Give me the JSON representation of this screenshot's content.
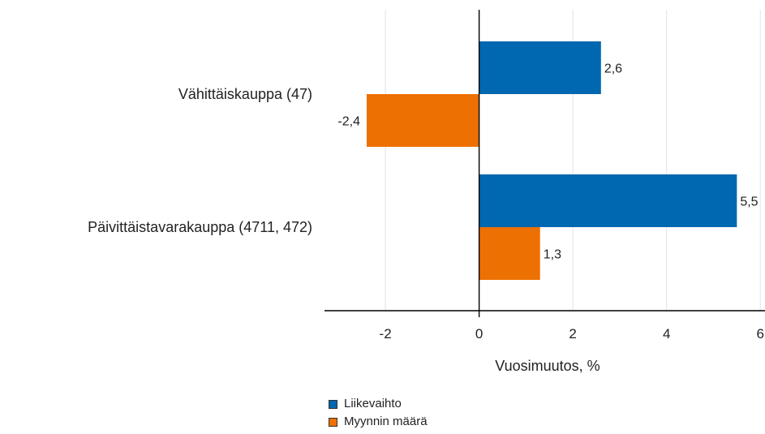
{
  "chart_data": {
    "type": "bar",
    "orientation": "horizontal",
    "categories": [
      "Vähittäiskauppa (47)",
      "Päivittäistavarakauppa (4711, 472)"
    ],
    "series": [
      {
        "name": "Liikevaihto",
        "color": "#0068b0",
        "values": [
          2.6,
          5.5
        ],
        "labels": [
          "2,6",
          "5,5"
        ]
      },
      {
        "name": "Myynnin määrä",
        "color": "#ed7003",
        "values": [
          -2.4,
          1.3
        ],
        "labels": [
          "-2,4",
          "1,3"
        ]
      }
    ],
    "xlabel": "Vuosimuutos, %",
    "xlim": [
      -3.3,
      6.1
    ],
    "xticks": [
      -2,
      0,
      2,
      4,
      6
    ],
    "xtick_labels": [
      "-2",
      "0",
      "2",
      "4",
      "6"
    ],
    "grid": true,
    "legend_position": "bottom"
  }
}
